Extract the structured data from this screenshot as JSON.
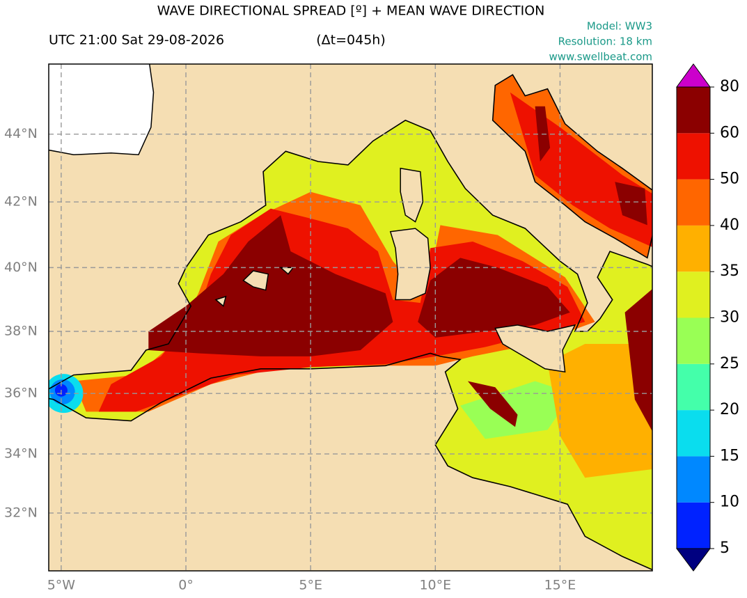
{
  "header": {
    "title": "WAVE DIRECTIONAL SPREAD [º] + MEAN WAVE DIRECTION",
    "time": "UTC 21:00 Sat 29-08-2026",
    "lead": "(Δt=045h)",
    "model": "Model: WW3",
    "resolution": "Resolution: 18 km",
    "website": "www.swellbeat.com"
  },
  "map": {
    "xlim": [
      -5.5,
      18.7
    ],
    "ylim": [
      30,
      46
    ],
    "xticks": [
      {
        "value": -5,
        "label": "5°W"
      },
      {
        "value": 0,
        "label": "0°"
      },
      {
        "value": 5,
        "label": "5°E"
      },
      {
        "value": 10,
        "label": "10°E"
      },
      {
        "value": 15,
        "label": "15°E"
      }
    ],
    "yticks": [
      {
        "value": 32,
        "label": "32°N"
      },
      {
        "value": 34,
        "label": "34°N"
      },
      {
        "value": 36,
        "label": "36°N"
      },
      {
        "value": 38,
        "label": "38°N"
      },
      {
        "value": 40,
        "label": "40°N"
      },
      {
        "value": 42,
        "label": "42°N"
      },
      {
        "value": 44,
        "label": "44°N"
      }
    ],
    "grid": true,
    "land_color": "#f5deb3"
  },
  "colorbar": {
    "levels": [
      5,
      10,
      15,
      20,
      25,
      30,
      35,
      40,
      50,
      60,
      80
    ],
    "colors": [
      "#0022ff",
      "#0088ff",
      "#0addee",
      "#44ffaa",
      "#99ff55",
      "#e0f020",
      "#ffb000",
      "#ff6600",
      "#ee1100",
      "#8b0000"
    ],
    "under_color": "#000080",
    "over_color": "#cc00cc"
  }
}
